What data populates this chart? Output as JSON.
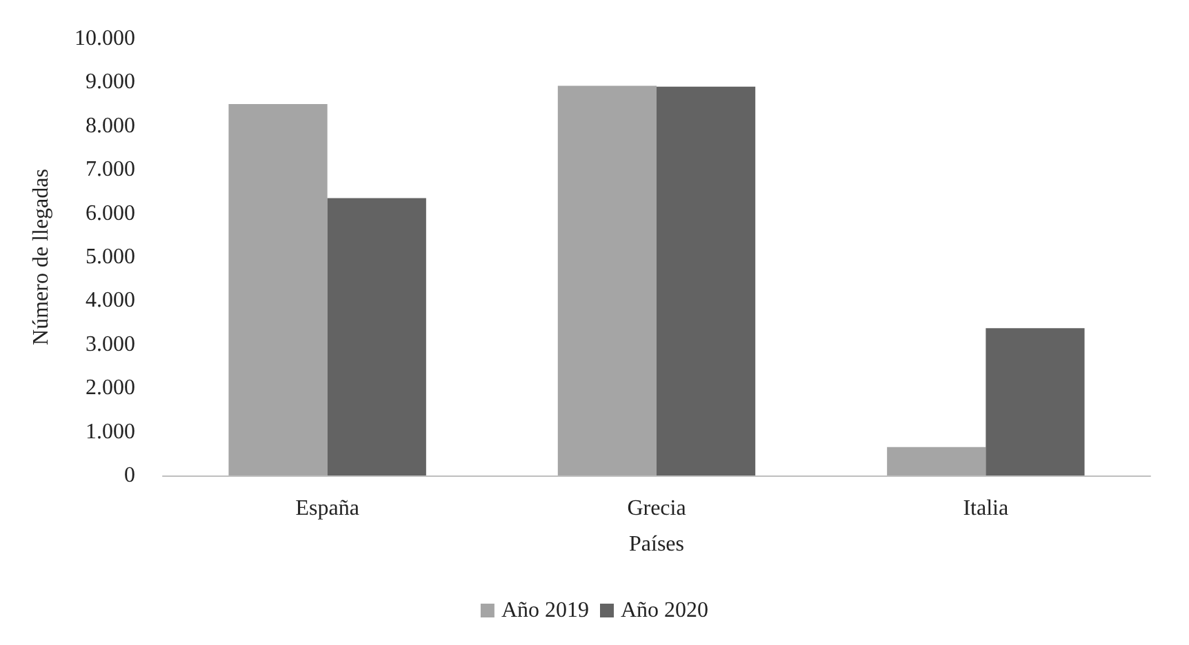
{
  "chart_data": {
    "type": "bar",
    "xlabel": "Países",
    "ylabel": "Número de llegadas",
    "categories": [
      "España",
      "Grecia",
      "Italia"
    ],
    "series": [
      {
        "name": "Año 2019",
        "color": "#a5a5a5",
        "values": [
          8500,
          8920,
          650
        ]
      },
      {
        "name": "Año 2020",
        "color": "#636363",
        "values": [
          6350,
          8900,
          3370
        ]
      }
    ],
    "ylim": [
      0,
      10000
    ],
    "yticks": [
      0,
      {
        "value": 1000,
        "label": "1.000"
      },
      {
        "value": 2000,
        "label": "2.000"
      },
      {
        "value": 3000,
        "label": "3.000"
      },
      {
        "value": 4000,
        "label": "4.000"
      },
      {
        "value": 5000,
        "label": "5.000"
      },
      {
        "value": 6000,
        "label": "6.000"
      },
      {
        "value": 7000,
        "label": "7.000"
      },
      {
        "value": 8000,
        "label": "8.000"
      },
      {
        "value": 9000,
        "label": "9.000"
      },
      {
        "value": 10000,
        "label": "10.000"
      }
    ],
    "grid": false,
    "legend": "bottom"
  }
}
